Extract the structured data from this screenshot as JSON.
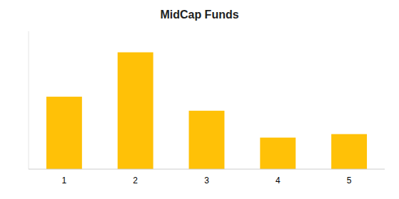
{
  "chart_data": {
    "type": "bar",
    "title": "MidCap Funds",
    "categories": [
      "1",
      "2",
      "3",
      "4",
      "5"
    ],
    "values": [
      62,
      100,
      50,
      27,
      30
    ],
    "color": "#FFC107",
    "ylim": [
      0,
      118
    ],
    "grid": false,
    "tick_labels": "x"
  }
}
